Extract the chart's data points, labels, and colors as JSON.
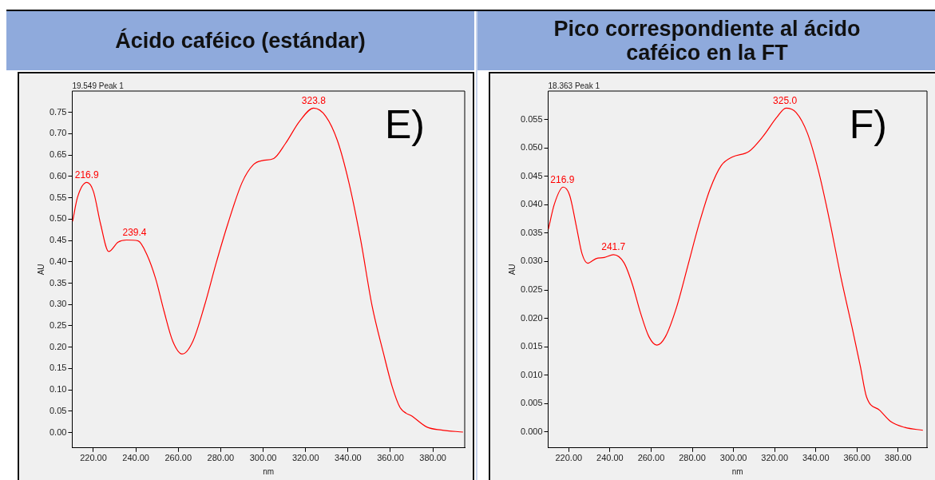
{
  "chart_data": [
    {
      "type": "line",
      "title": "Ácido caféico (estándar)",
      "subtitle": "19.549 Peak 1",
      "xlabel": "nm",
      "ylabel": "AU",
      "legend": false,
      "grid": false,
      "marker": "none",
      "line_style": "solid",
      "xlim": [
        210,
        395
      ],
      "ylim": [
        -0.036,
        0.8
      ],
      "xticks": [
        {
          "value": 220,
          "label": "220.00"
        },
        {
          "value": 240,
          "label": "240.00"
        },
        {
          "value": 260,
          "label": "260.00"
        },
        {
          "value": 280,
          "label": "280.00"
        },
        {
          "value": 300,
          "label": "300.00"
        },
        {
          "value": 320,
          "label": "320.00"
        },
        {
          "value": 340,
          "label": "340.00"
        },
        {
          "value": 360,
          "label": "360.00"
        },
        {
          "value": 380,
          "label": "380.00"
        }
      ],
      "yticks": [
        {
          "value": 0,
          "label": "0.00"
        },
        {
          "value": 0.05,
          "label": "0.05"
        },
        {
          "value": 0.1,
          "label": "0.10"
        },
        {
          "value": 0.15,
          "label": "0.15"
        },
        {
          "value": 0.2,
          "label": "0.20"
        },
        {
          "value": 0.25,
          "label": "0.25"
        },
        {
          "value": 0.3,
          "label": "0.30"
        },
        {
          "value": 0.35,
          "label": "0.35"
        },
        {
          "value": 0.4,
          "label": "0.40"
        },
        {
          "value": 0.45,
          "label": "0.45"
        },
        {
          "value": 0.5,
          "label": "0.50"
        },
        {
          "value": 0.55,
          "label": "0.55"
        },
        {
          "value": 0.6,
          "label": "0.60"
        },
        {
          "value": 0.65,
          "label": "0.65"
        },
        {
          "value": 0.7,
          "label": "0.70"
        },
        {
          "value": 0.75,
          "label": "0.75"
        }
      ],
      "series": [
        {
          "color": "#ff0000",
          "x": [
            210.2,
            212.5,
            216.9,
            220,
            223.4,
            227.2,
            231.6,
            235.6,
            241.1,
            245.2,
            249.3,
            253.3,
            257.4,
            261.9,
            266.9,
            272.4,
            277.8,
            283.3,
            290.1,
            295.5,
            299.6,
            305,
            310.5,
            317.3,
            323.8,
            329.5,
            335,
            340.4,
            345.9,
            351.3,
            356.7,
            360.8,
            364.6,
            370.3,
            377.1,
            383.9,
            394.2
          ],
          "values": [
            0.495,
            0.551,
            0.586,
            0.565,
            0.488,
            0.424,
            0.446,
            0.451,
            0.449,
            0.417,
            0.361,
            0.284,
            0.214,
            0.184,
            0.214,
            0.298,
            0.396,
            0.488,
            0.586,
            0.628,
            0.637,
            0.642,
            0.677,
            0.73,
            0.76,
            0.741,
            0.684,
            0.586,
            0.453,
            0.298,
            0.186,
            0.108,
            0.058,
            0.038,
            0.013,
            0.006,
            0.001
          ]
        }
      ],
      "annotations": [
        {
          "text": "216.9",
          "x": 216.9,
          "y": 0.586
        },
        {
          "text": "239.4",
          "x": 239.4,
          "y": 0.451
        },
        {
          "text": "323.8",
          "x": 323.8,
          "y": 0.76
        },
        "E)"
      ]
    },
    {
      "type": "line",
      "title": "Pico correspondiente al ácido caféico en la FT",
      "subtitle": "18.363 Peak 1",
      "xlabel": "nm",
      "ylabel": "AU",
      "legend": false,
      "grid": false,
      "marker": "none",
      "line_style": "solid",
      "xlim": [
        210,
        394
      ],
      "ylim": [
        -0.0028,
        0.06
      ],
      "xticks": [
        {
          "value": 220,
          "label": "220.00"
        },
        {
          "value": 240,
          "label": "240.00"
        },
        {
          "value": 260,
          "label": "260.00"
        },
        {
          "value": 280,
          "label": "280.00"
        },
        {
          "value": 300,
          "label": "300.00"
        },
        {
          "value": 320,
          "label": "320.00"
        },
        {
          "value": 340,
          "label": "340.00"
        },
        {
          "value": 360,
          "label": "360.00"
        },
        {
          "value": 380,
          "label": "380.00"
        }
      ],
      "yticks": [
        {
          "value": 0,
          "label": "0.000"
        },
        {
          "value": 0.005,
          "label": "0.005"
        },
        {
          "value": 0.01,
          "label": "0.010"
        },
        {
          "value": 0.015,
          "label": "0.015"
        },
        {
          "value": 0.02,
          "label": "0.020"
        },
        {
          "value": 0.025,
          "label": "0.025"
        },
        {
          "value": 0.03,
          "label": "0.030"
        },
        {
          "value": 0.035,
          "label": "0.035"
        },
        {
          "value": 0.04,
          "label": "0.040"
        },
        {
          "value": 0.045,
          "label": "0.045"
        },
        {
          "value": 0.05,
          "label": "0.050"
        },
        {
          "value": 0.055,
          "label": "0.055"
        }
      ],
      "series": [
        {
          "color": "#ff0000",
          "x": [
            210.1,
            213,
            217.3,
            220.4,
            223.8,
            226.5,
            229.2,
            233.2,
            237.3,
            241.7,
            246.8,
            250.8,
            254.9,
            258.9,
            262.8,
            267,
            272.4,
            277.8,
            283.2,
            288.6,
            294.1,
            299.5,
            307.6,
            314.3,
            321.1,
            325.5,
            330.5,
            335.9,
            341.4,
            346.8,
            352.2,
            357.6,
            361.6,
            364.6,
            371.1,
            376.5,
            383.2,
            392
          ],
          "values": [
            0.0357,
            0.0401,
            0.0431,
            0.0417,
            0.036,
            0.0313,
            0.0297,
            0.0305,
            0.0307,
            0.0312,
            0.0298,
            0.0261,
            0.0209,
            0.0168,
            0.0153,
            0.0168,
            0.022,
            0.0292,
            0.0365,
            0.0427,
            0.0469,
            0.0484,
            0.0494,
            0.052,
            0.0554,
            0.057,
            0.0562,
            0.0526,
            0.0458,
            0.037,
            0.0272,
            0.0184,
            0.0116,
            0.0062,
            0.0038,
            0.0018,
            0.0008,
            0.0003
          ]
        }
      ],
      "annotations": [
        {
          "text": "216.9",
          "x": 216.9,
          "y": 0.0431
        },
        {
          "text": "241.7",
          "x": 241.7,
          "y": 0.0312
        },
        {
          "text": "325.0",
          "x": 325.0,
          "y": 0.057
        },
        "F)"
      ]
    }
  ]
}
